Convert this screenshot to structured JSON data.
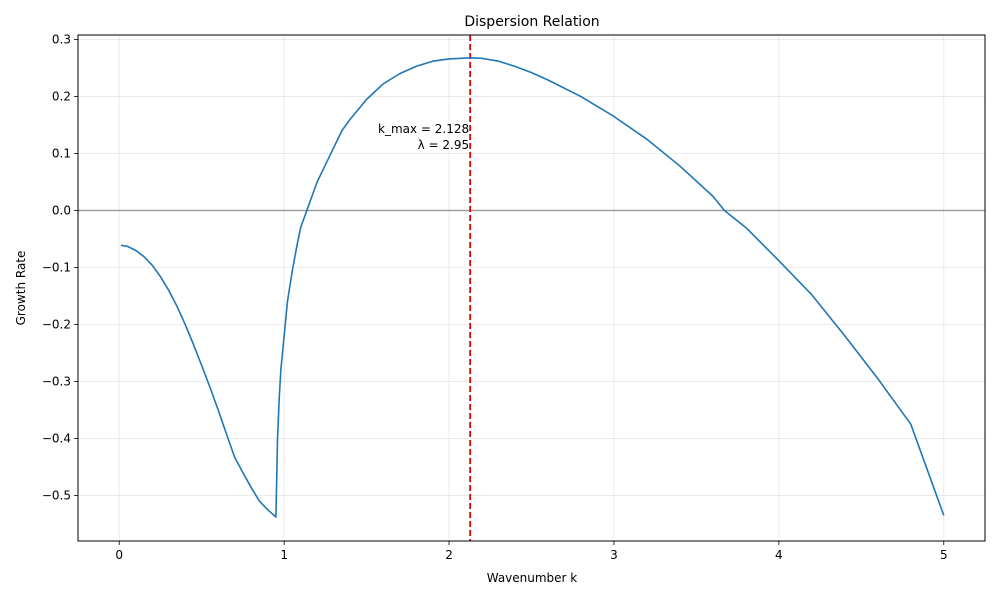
{
  "chart_data": {
    "type": "line",
    "title": "Dispersion Relation",
    "xlabel": "Wavenumber k",
    "ylabel": "Growth Rate",
    "xlim": [
      -0.25,
      5.25
    ],
    "ylim": [
      -0.58,
      0.308
    ],
    "xticks": [
      0,
      1,
      2,
      3,
      4,
      5
    ],
    "xtick_labels": [
      "0",
      "1",
      "2",
      "3",
      "4",
      "5"
    ],
    "yticks": [
      0.3,
      0.2,
      0.1,
      0.0,
      -0.1,
      -0.2,
      -0.3,
      -0.4,
      -0.5
    ],
    "ytick_labels": [
      "0.3",
      "0.2",
      "0.1",
      "0.0",
      "−0.1",
      "−0.2",
      "−0.3",
      "−0.4",
      "−0.5"
    ],
    "grid": true,
    "series": [
      {
        "color": "#1f77b4",
        "x": [
          0.01,
          0.05,
          0.1,
          0.15,
          0.2,
          0.25,
          0.3,
          0.35,
          0.4,
          0.45,
          0.5,
          0.55,
          0.6,
          0.65,
          0.7,
          0.75,
          0.8,
          0.85,
          0.9,
          0.95,
          0.955,
          0.96,
          0.97,
          0.98,
          1.0,
          1.02,
          1.05,
          1.08,
          1.1,
          1.15,
          1.2,
          1.25,
          1.3,
          1.35,
          1.4,
          1.5,
          1.6,
          1.7,
          1.8,
          1.9,
          2.0,
          2.128,
          2.2,
          2.3,
          2.4,
          2.5,
          2.6,
          2.8,
          3.0,
          3.2,
          3.4,
          3.6,
          3.67,
          3.8,
          4.0,
          4.2,
          4.4,
          4.6,
          4.8,
          5.0
        ],
        "y": [
          -0.061,
          -0.063,
          -0.07,
          -0.081,
          -0.096,
          -0.116,
          -0.14,
          -0.168,
          -0.2,
          -0.235,
          -0.272,
          -0.31,
          -0.35,
          -0.392,
          -0.433,
          -0.46,
          -0.486,
          -0.51,
          -0.525,
          -0.538,
          -0.47,
          -0.4,
          -0.33,
          -0.28,
          -0.22,
          -0.16,
          -0.105,
          -0.058,
          -0.03,
          0.01,
          0.05,
          0.08,
          0.11,
          0.14,
          0.16,
          0.195,
          0.222,
          0.24,
          0.253,
          0.262,
          0.266,
          0.268,
          0.267,
          0.262,
          0.253,
          0.242,
          0.229,
          0.2,
          0.165,
          0.125,
          0.078,
          0.025,
          0.0,
          -0.03,
          -0.088,
          -0.148,
          -0.22,
          -0.295,
          -0.375,
          -0.535
        ]
      }
    ],
    "hlines": [
      {
        "y": 0.0,
        "color": "#888888"
      }
    ],
    "vlines": [
      {
        "x": 2.128,
        "color": "#e50000",
        "style": "dashed"
      }
    ],
    "annotation": {
      "line1": "k_max = 2.128",
      "line2": "λ = 2.95",
      "x": 2.128,
      "y": 0.12
    }
  }
}
